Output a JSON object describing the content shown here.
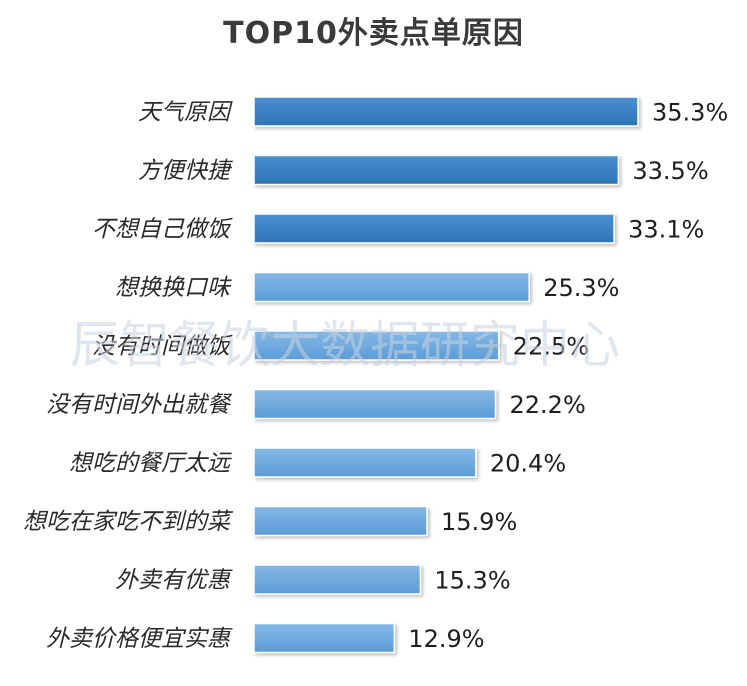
{
  "chart_data": {
    "type": "bar",
    "orientation": "horizontal",
    "title": "TOP10外卖点单原因",
    "watermark": "辰智餐饮大数据研究中心",
    "categories": [
      "天气原因",
      "方便快捷",
      "不想自己做饭",
      "想换换口味",
      "没有时间做饭",
      "没有时间外出就餐",
      "想吃的餐厅太远",
      "想吃在家吃不到的菜",
      "外卖有优惠",
      "外卖价格便宜实惠"
    ],
    "values": [
      35.3,
      33.5,
      33.1,
      25.3,
      22.5,
      22.2,
      20.4,
      15.9,
      15.3,
      12.9
    ],
    "value_labels": [
      "35.3%",
      "33.5%",
      "33.1%",
      "25.3%",
      "22.5%",
      "22.2%",
      "20.4%",
      "15.9%",
      "15.3%",
      "12.9%"
    ],
    "unit": "%",
    "xlim": [
      0,
      35.3
    ],
    "colors": {
      "top3_bar": "#2e75b6",
      "other_bar": "#5b9bd5",
      "top3_gradient_light": "#4a8fd0",
      "other_gradient_light": "#86b8e6"
    },
    "grid": false,
    "legend": "none"
  }
}
